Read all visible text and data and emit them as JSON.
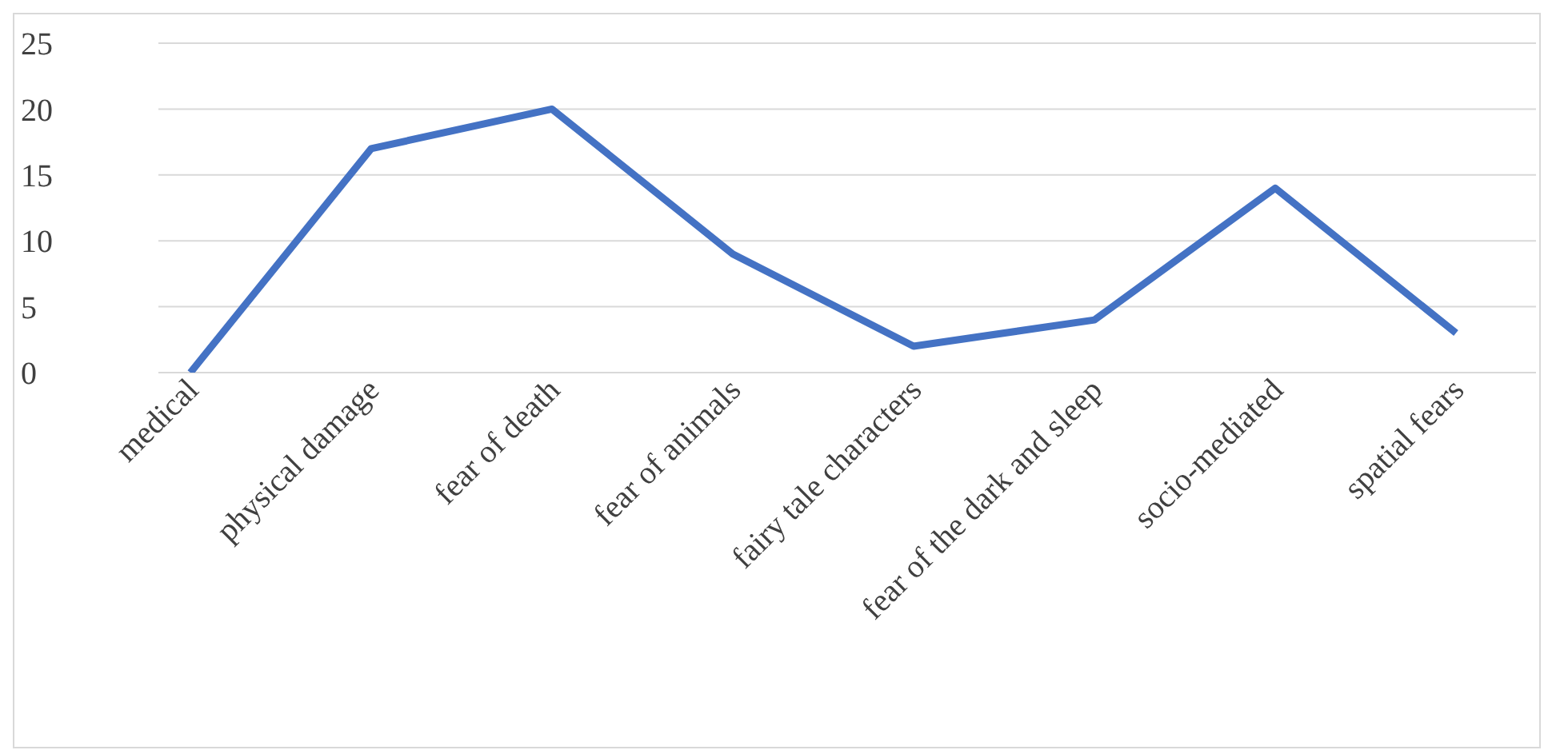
{
  "chart_data": {
    "type": "line",
    "categories": [
      "medical",
      "physical damage",
      "fear of death",
      "fear of animals",
      "fairy tale characters",
      "fear of the dark and sleep",
      "socio-mediated",
      "spatial fears"
    ],
    "series": [
      {
        "color": "#4472c4",
        "values": [
          0,
          17,
          20,
          9,
          2,
          4,
          14,
          3
        ]
      }
    ],
    "ylim": [
      0,
      25
    ],
    "yticks": [
      0,
      5,
      10,
      15,
      20,
      25
    ],
    "grid": "y",
    "marker": "none",
    "line_style": "solid",
    "legend": false
  }
}
